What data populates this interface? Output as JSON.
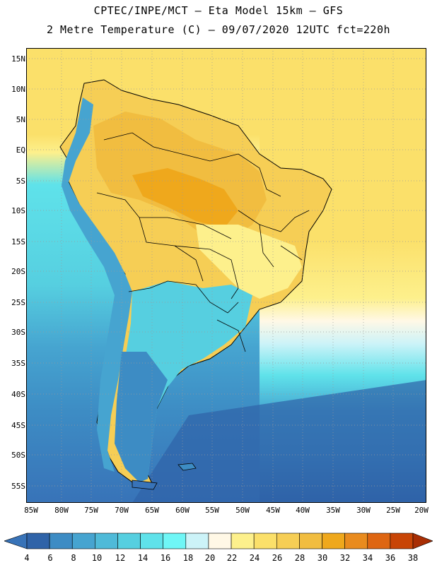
{
  "header": {
    "line1": "CPTEC/INPE/MCT –  Eta Model 15km – GFS",
    "line2": "2 Metre Temperature (C) – 09/07/2020 12UTC fct=220h"
  },
  "map": {
    "lat_labels": [
      "15N",
      "10N",
      "5N",
      "EQ",
      "5S",
      "10S",
      "15S",
      "20S",
      "25S",
      "30S",
      "35S",
      "40S",
      "45S",
      "50S",
      "55S"
    ],
    "lon_labels": [
      "85W",
      "80W",
      "75W",
      "70W",
      "65W",
      "60W",
      "55W",
      "50W",
      "45W",
      "40W",
      "35W",
      "30W",
      "25W",
      "20W"
    ]
  },
  "colorbar": {
    "labels": [
      "4",
      "6",
      "8",
      "10",
      "12",
      "14",
      "16",
      "18",
      "20",
      "22",
      "24",
      "26",
      "28",
      "30",
      "32",
      "34",
      "36",
      "38"
    ],
    "colors": [
      "#3873b8",
      "#2f63a8",
      "#3d8cc4",
      "#46a4d0",
      "#4fbad8",
      "#56cfe0",
      "#5fe2ea",
      "#6ff6f6",
      "#ccf3f8",
      "#fff8e6",
      "#fdf08c",
      "#fbe06a",
      "#f6ce55",
      "#f1bd40",
      "#efa81c",
      "#e98b1e",
      "#de6612",
      "#c84506",
      "#a82e04"
    ]
  }
}
